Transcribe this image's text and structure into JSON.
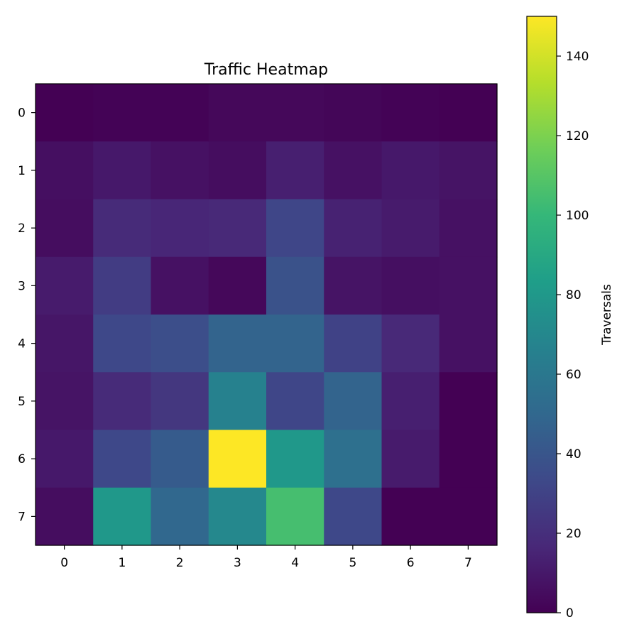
{
  "chart_data": {
    "type": "heatmap",
    "title": "Traffic Heatmap",
    "x_categories": [
      "0",
      "1",
      "2",
      "3",
      "4",
      "5",
      "6",
      "7"
    ],
    "y_categories": [
      "0",
      "1",
      "2",
      "3",
      "4",
      "5",
      "6",
      "7"
    ],
    "values": [
      [
        0,
        1,
        1,
        3,
        3,
        2,
        1,
        0
      ],
      [
        6,
        10,
        7,
        5,
        13,
        7,
        10,
        8
      ],
      [
        5,
        18,
        16,
        17,
        32,
        14,
        11,
        7
      ],
      [
        11,
        27,
        7,
        3,
        38,
        8,
        6,
        7
      ],
      [
        9,
        33,
        36,
        48,
        48,
        30,
        17,
        7
      ],
      [
        8,
        18,
        24,
        66,
        32,
        48,
        13,
        0
      ],
      [
        10,
        33,
        43,
        150,
        80,
        55,
        11,
        0
      ],
      [
        5,
        80,
        50,
        70,
        105,
        33,
        0,
        0
      ]
    ],
    "colorbar": {
      "label": "Traversals",
      "range": [
        0,
        150
      ],
      "ticks": [
        0,
        20,
        40,
        60,
        80,
        100,
        120,
        140
      ],
      "colormap": "viridis",
      "placement": "right"
    },
    "grid": false,
    "colors": {
      "viridis_stops": [
        "#440154",
        "#482878",
        "#3e4989",
        "#31688e",
        "#26828e",
        "#1f9e89",
        "#35b779",
        "#6ece58",
        "#b5de2b",
        "#fde725"
      ]
    }
  }
}
